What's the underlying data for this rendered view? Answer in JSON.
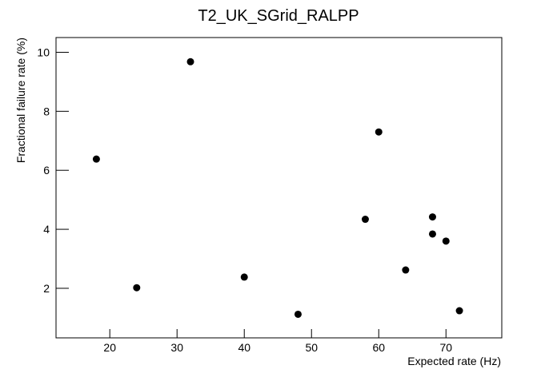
{
  "chart_data": {
    "type": "scatter",
    "title": "T2_UK_SGrid_RALPP",
    "x_label": "Expected rate (Hz)",
    "y_label": "Fractional failure rate (%)",
    "x": [
      18,
      24,
      32,
      40,
      48,
      58,
      60,
      64,
      68,
      68,
      70,
      72
    ],
    "values": [
      6.38,
      2.02,
      9.68,
      2.38,
      1.12,
      4.34,
      7.3,
      2.62,
      4.42,
      3.84,
      3.6,
      1.24
    ],
    "color": "#000000",
    "xlim": [
      12,
      78.3
    ],
    "xticks": [
      20,
      30,
      40,
      50,
      60,
      70
    ],
    "ylim": [
      0.32,
      10.5
    ],
    "yticks": [
      2,
      4,
      6,
      8,
      10
    ]
  }
}
